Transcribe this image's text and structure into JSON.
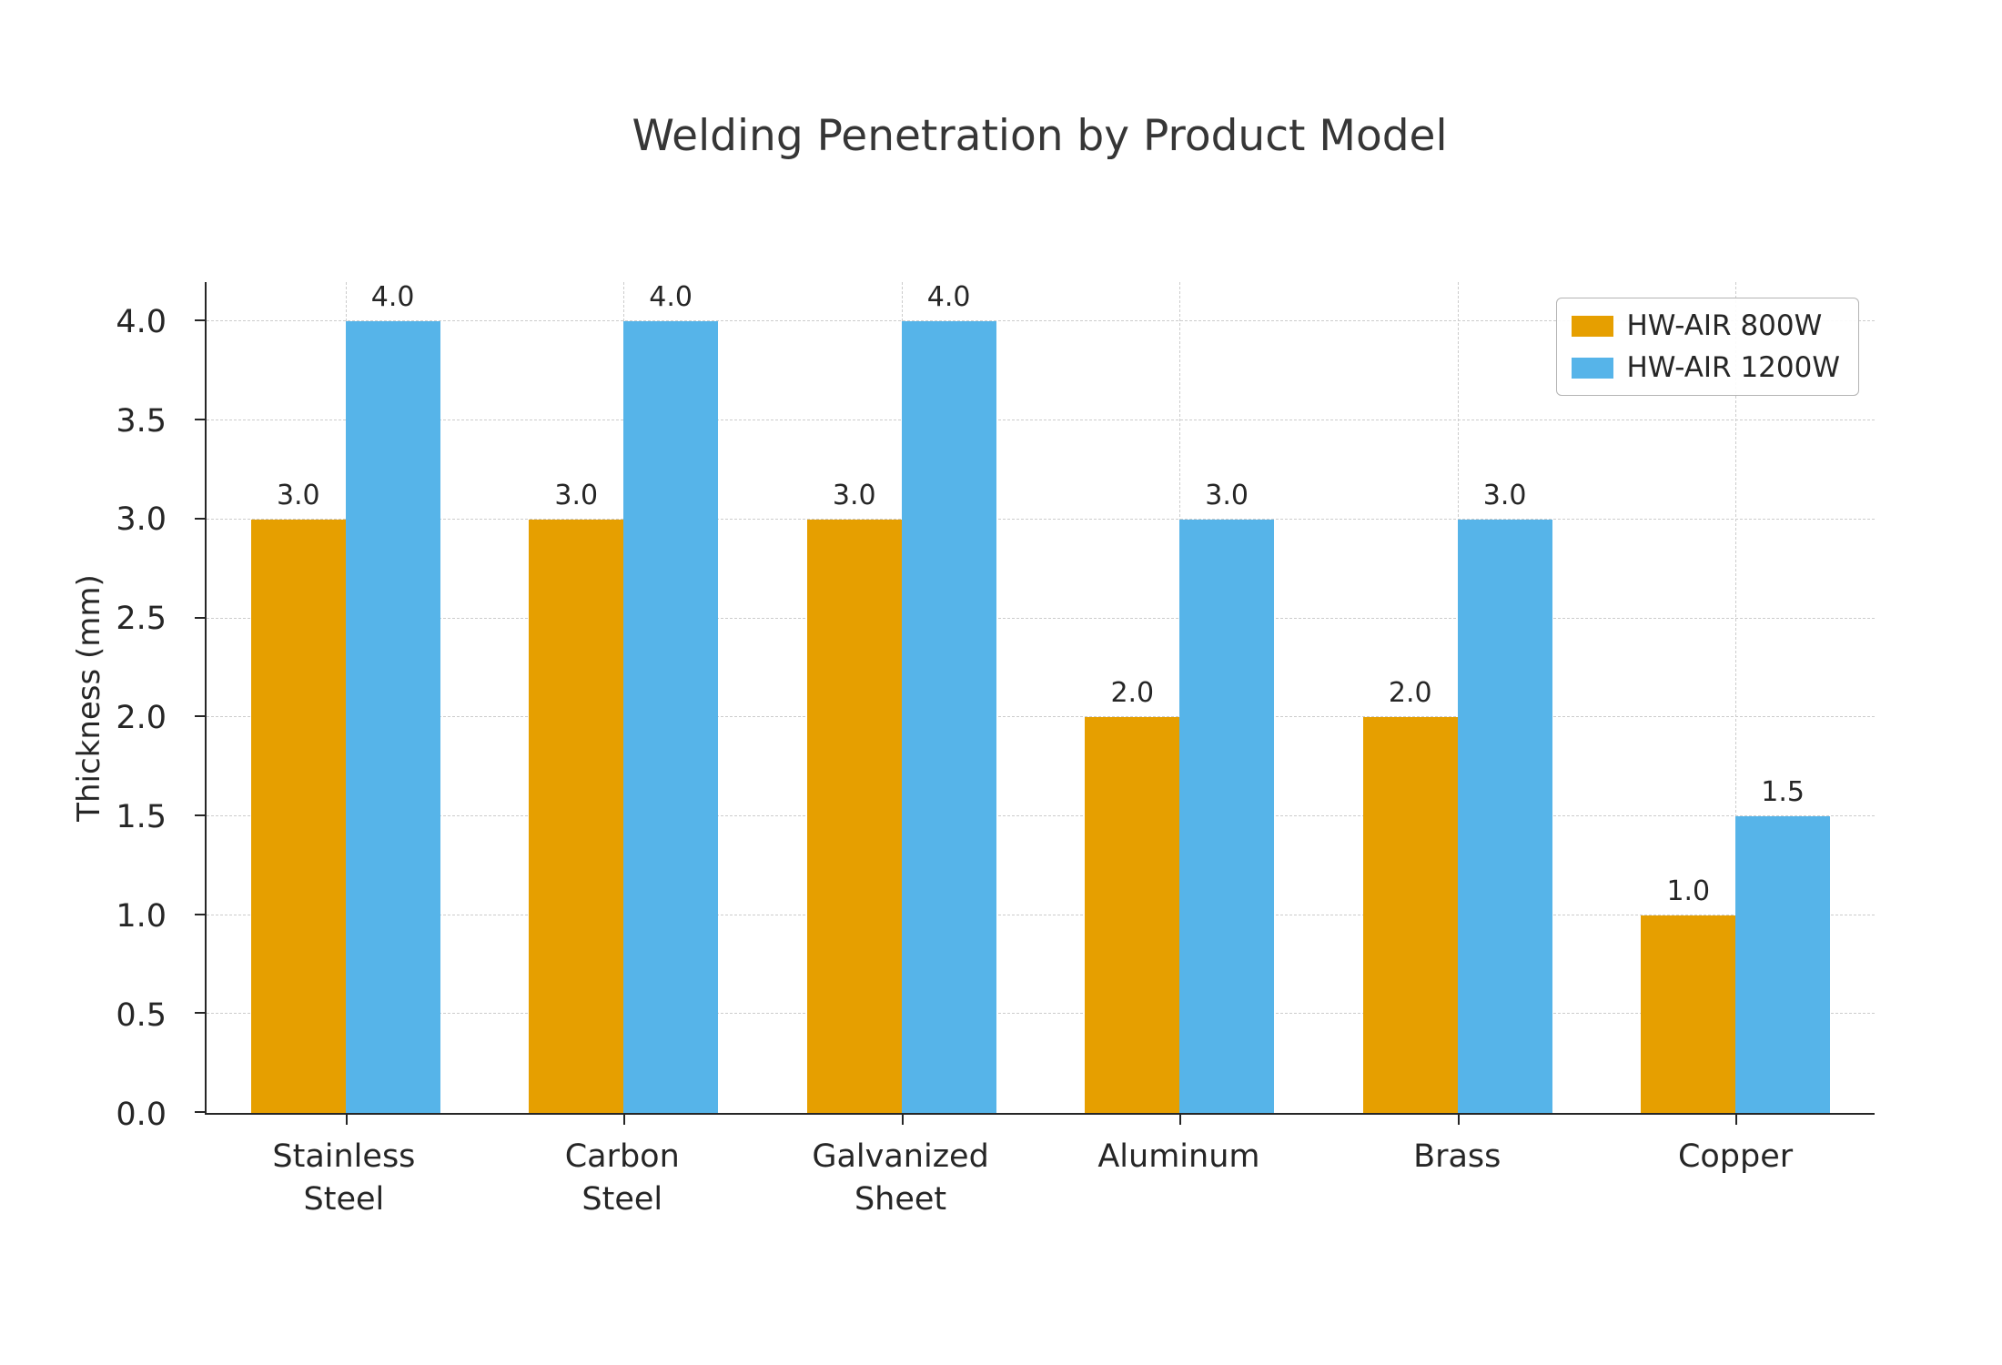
{
  "chart_data": {
    "type": "bar",
    "title": "Welding Penetration by Product Model",
    "xlabel": "",
    "ylabel": "Thickness (mm)",
    "categories": [
      "Stainless\nSteel",
      "Carbon\nSteel",
      "Galvanized\nSheet",
      "Aluminum",
      "Brass",
      "Copper"
    ],
    "series": [
      {
        "name": "HW-AIR 800W",
        "color": "#E69F00",
        "values": [
          3.0,
          3.0,
          3.0,
          2.0,
          2.0,
          1.0
        ]
      },
      {
        "name": "HW-AIR 1200W",
        "color": "#56B4E9",
        "values": [
          4.0,
          4.0,
          4.0,
          3.0,
          3.0,
          1.5
        ]
      }
    ],
    "ylim": [
      0,
      4.2
    ],
    "yticks": [
      0.0,
      0.5,
      1.0,
      1.5,
      2.0,
      2.5,
      3.0,
      3.5,
      4.0
    ],
    "grid": true,
    "legend_position": "top-right",
    "bar_value_labels": true
  }
}
